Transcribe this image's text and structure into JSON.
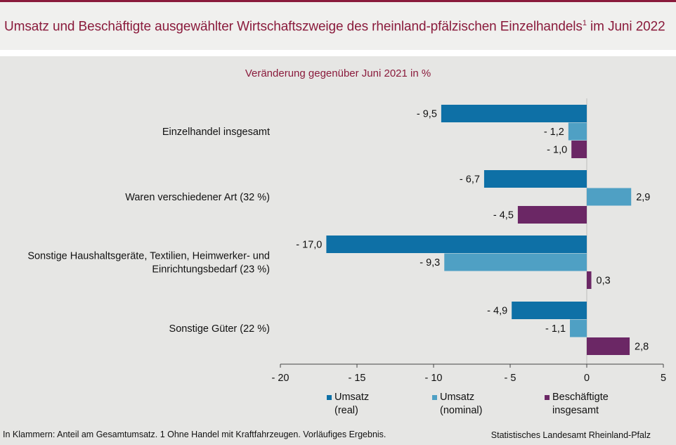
{
  "header": {
    "title": "Umsatz und Beschäftigte ausgewählter Wirtschaftszweige des rheinland-pfälzischen Einzelhandels",
    "title_sup": "1",
    "title_suffix": " im Juni 2022"
  },
  "chart_data": {
    "type": "bar",
    "orientation": "horizontal",
    "subtitle": "Veränderung gegenüber Juni 2021 in %",
    "categories": [
      "Einzelhandel insgesamt",
      "Waren verschiedener Art (32 %)",
      "Sonstige Haushaltsgeräte, Textilien, Heimwerker- und\nEinrichtungsbedarf (23 %)",
      "Sonstige Güter (22 %)"
    ],
    "series": [
      {
        "name": "Umsatz\n(real)",
        "color": "#0e70a6",
        "values": [
          -9.5,
          -6.7,
          -17.0,
          -4.9
        ],
        "labels": [
          "- 9,5",
          "- 6,7",
          "- 17,0",
          "- 4,9"
        ]
      },
      {
        "name": "Umsatz\n(nominal)",
        "color": "#4fa0c4",
        "values": [
          -1.2,
          2.9,
          -9.3,
          -1.1
        ],
        "labels": [
          "- 1,2",
          "2,9",
          "- 9,3",
          "- 1,1"
        ]
      },
      {
        "name": "Beschäftigte\ninsgesamt",
        "color": "#6b2765",
        "values": [
          -1.0,
          -4.5,
          0.3,
          2.8
        ],
        "labels": [
          "- 1,0",
          "- 4,5",
          "0,3",
          "2,8"
        ]
      }
    ],
    "xlim": [
      -20,
      5
    ],
    "xticks": [
      -20,
      -15,
      -10,
      -5,
      0,
      5
    ],
    "xtick_labels": [
      "- 20",
      "- 15",
      "- 10",
      "- 5",
      "0",
      "5"
    ],
    "legend_position": "bottom"
  },
  "footer": {
    "note": "In Klammern: Anteil am Gesamtumsatz. 1 Ohne Handel mit Kraftfahrzeugen. Vorläufiges Ergebnis.",
    "source": "Statistisches Landesamt Rheinland-Pfalz"
  }
}
